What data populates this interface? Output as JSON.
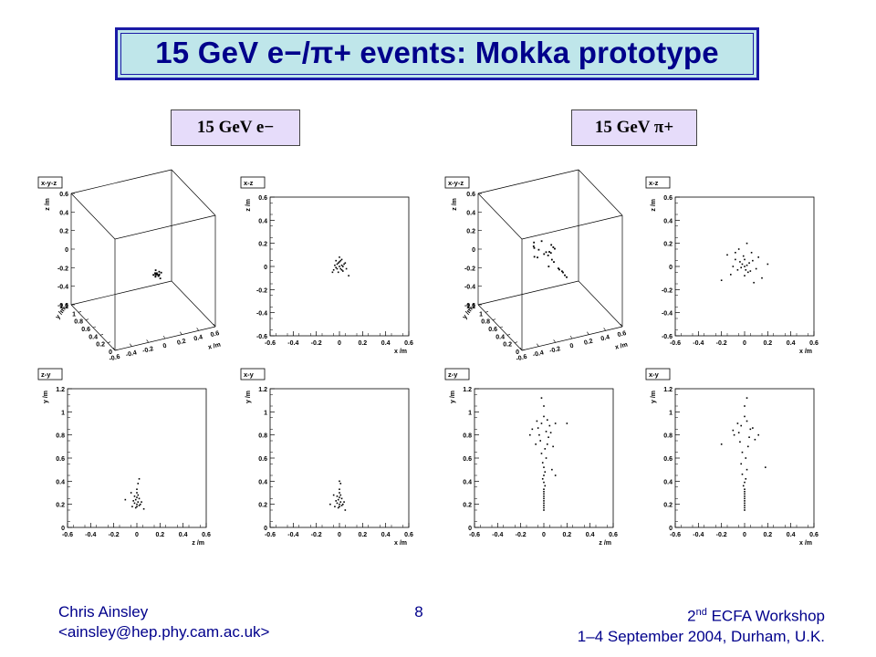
{
  "slide": {
    "title": "15 GeV e−/π+ events: Mokka prototype",
    "label_left": "15 GeV e−",
    "label_right": "15 GeV π+",
    "footer": {
      "author": "Chris Ainsley",
      "email": "<ainsley@hep.phy.cam.ac.uk>",
      "page": "8",
      "workshop_num": "2",
      "workshop_sup": "nd",
      "workshop_rest": " ECFA Workshop",
      "dates": "1–4 September 2004, Durham, U.K."
    }
  },
  "chart_data": [
    {
      "type": "scatter",
      "event": "15 GeV e−",
      "view": "x-y-z",
      "title": "x-y-z",
      "xlabel": "x /m",
      "ylabel": "y /m",
      "zlabel": "z /m",
      "xlim": [
        -0.6,
        0.6
      ],
      "ylim": [
        0,
        1.2
      ],
      "zlim": [
        -0.6,
        0.6
      ],
      "xticks": [
        "-0.6",
        "-0.4",
        "-0.2",
        "0",
        "0.2",
        "0.4",
        "0.6"
      ],
      "yticks": [
        "0",
        "0.2",
        "0.4",
        "0.6",
        "0.8",
        "1",
        "1.2"
      ],
      "zticks": [
        "-0.6",
        "-0.4",
        "-0.2",
        "0",
        "0.2",
        "0.4",
        "0.6"
      ],
      "points": [
        [
          -0.02,
          0.2,
          0.02
        ],
        [
          0.0,
          0.22,
          0.0
        ],
        [
          0.02,
          0.21,
          0.03
        ],
        [
          -0.01,
          0.24,
          -0.02
        ],
        [
          0.01,
          0.19,
          0.01
        ],
        [
          0.03,
          0.23,
          -0.01
        ],
        [
          -0.03,
          0.2,
          0.02
        ],
        [
          0.0,
          0.26,
          0.03
        ],
        [
          0.02,
          0.18,
          -0.03
        ],
        [
          -0.02,
          0.22,
          -0.02
        ],
        [
          0.01,
          0.25,
          0.0
        ],
        [
          0.04,
          0.2,
          0.02
        ],
        [
          -0.04,
          0.23,
          0.0
        ],
        [
          0.0,
          0.17,
          0.01
        ],
        [
          0.05,
          0.3,
          -0.06
        ],
        [
          -0.05,
          0.16,
          0.05
        ]
      ]
    },
    {
      "type": "scatter",
      "event": "15 GeV e−",
      "view": "x-z",
      "title": "x-z",
      "xlabel": "x /m",
      "ylabel": "z /m",
      "xlim": [
        -0.6,
        0.6
      ],
      "ylim": [
        -0.6,
        0.6
      ],
      "xticks": [
        "-0.6",
        "-0.4",
        "-0.2",
        "0",
        "0.2",
        "0.4",
        "0.6"
      ],
      "yticks": [
        "-0.6",
        "-0.4",
        "-0.2",
        "0",
        "0.2",
        "0.4",
        "0.6"
      ],
      "points": [
        [
          0.0,
          0.0
        ],
        [
          -0.02,
          0.02
        ],
        [
          0.02,
          0.01
        ],
        [
          0.01,
          -0.02
        ],
        [
          -0.01,
          0.03
        ],
        [
          0.03,
          0.0
        ],
        [
          -0.03,
          -0.01
        ],
        [
          0.0,
          0.04
        ],
        [
          0.02,
          -0.03
        ],
        [
          -0.02,
          -0.02
        ],
        [
          0.04,
          0.02
        ],
        [
          -0.04,
          0.01
        ],
        [
          0.01,
          0.05
        ],
        [
          0.03,
          -0.04
        ],
        [
          -0.01,
          -0.05
        ],
        [
          0.05,
          0.03
        ],
        [
          -0.05,
          -0.03
        ],
        [
          0.0,
          0.08
        ],
        [
          -0.06,
          -0.05
        ],
        [
          0.06,
          -0.02
        ],
        [
          0.02,
          0.06
        ],
        [
          -0.03,
          0.05
        ],
        [
          0.08,
          -0.08
        ]
      ]
    },
    {
      "type": "scatter",
      "event": "15 GeV π+",
      "view": "x-y-z",
      "title": "x-y-z",
      "xlabel": "x /m",
      "ylabel": "y /m",
      "zlabel": "z /m",
      "xlim": [
        -0.6,
        0.6
      ],
      "ylim": [
        0,
        1.2
      ],
      "zlim": [
        -0.6,
        0.6
      ],
      "xticks": [
        "-0.6",
        "-0.4",
        "-0.2",
        "0",
        "0.2",
        "0.4",
        "0.6"
      ],
      "yticks": [
        "0",
        "0.2",
        "0.4",
        "0.6",
        "0.8",
        "1",
        "1.2"
      ],
      "zticks": [
        "-0.6",
        "-0.4",
        "-0.2",
        "0",
        "0.2",
        "0.4",
        "0.6"
      ],
      "points": [
        [
          0.0,
          0.15,
          0.0
        ],
        [
          0.0,
          0.2,
          0.0
        ],
        [
          0.0,
          0.25,
          0.01
        ],
        [
          0.01,
          0.3,
          0.0
        ],
        [
          0.0,
          0.35,
          0.0
        ],
        [
          0.01,
          0.4,
          -0.01
        ],
        [
          0.0,
          0.5,
          0.02
        ],
        [
          0.02,
          0.6,
          0.0
        ],
        [
          -0.03,
          0.7,
          0.03
        ],
        [
          0.04,
          0.75,
          -0.02
        ],
        [
          -0.05,
          0.8,
          0.04
        ],
        [
          0.06,
          0.85,
          -0.03
        ],
        [
          -0.06,
          0.9,
          0.02
        ],
        [
          0.05,
          0.95,
          0.05
        ],
        [
          -0.08,
          0.85,
          -0.05
        ],
        [
          0.1,
          0.8,
          0.06
        ],
        [
          -0.1,
          0.72,
          0.0
        ],
        [
          0.12,
          0.9,
          -0.06
        ],
        [
          -0.02,
          1.0,
          0.03
        ],
        [
          0.03,
          0.65,
          0.05
        ],
        [
          -0.04,
          0.55,
          -0.04
        ],
        [
          0.08,
          0.7,
          0.08
        ],
        [
          -0.12,
          0.78,
          0.1
        ],
        [
          0.15,
          0.82,
          0.0
        ]
      ]
    },
    {
      "type": "scatter",
      "event": "15 GeV π+",
      "view": "x-z",
      "title": "x-z",
      "xlabel": "x /m",
      "ylabel": "z /m",
      "xlim": [
        -0.6,
        0.6
      ],
      "ylim": [
        -0.6,
        0.6
      ],
      "xticks": [
        "-0.6",
        "-0.4",
        "-0.2",
        "0",
        "0.2",
        "0.4",
        "0.6"
      ],
      "yticks": [
        "-0.6",
        "-0.4",
        "-0.2",
        "0",
        "0.2",
        "0.4",
        "0.6"
      ],
      "points": [
        [
          0.0,
          0.0
        ],
        [
          0.02,
          0.01
        ],
        [
          -0.02,
          0.02
        ],
        [
          0.01,
          -0.03
        ],
        [
          -0.03,
          -0.01
        ],
        [
          0.04,
          0.03
        ],
        [
          -0.04,
          0.04
        ],
        [
          0.0,
          0.06
        ],
        [
          0.05,
          -0.04
        ],
        [
          -0.06,
          -0.03
        ],
        [
          0.07,
          0.05
        ],
        [
          -0.08,
          0.06
        ],
        [
          0.1,
          -0.02
        ],
        [
          -0.1,
          0.0
        ],
        [
          0.0,
          -0.08
        ],
        [
          0.12,
          0.08
        ],
        [
          -0.12,
          -0.07
        ],
        [
          0.02,
          0.2
        ],
        [
          -0.05,
          0.15
        ],
        [
          0.15,
          -0.1
        ],
        [
          -0.2,
          -0.12
        ],
        [
          0.2,
          0.02
        ],
        [
          -0.15,
          0.1
        ],
        [
          0.08,
          -0.14
        ],
        [
          -0.08,
          0.12
        ],
        [
          0.03,
          -0.05
        ],
        [
          -0.01,
          0.09
        ],
        [
          0.06,
          0.12
        ]
      ]
    },
    {
      "type": "scatter",
      "event": "15 GeV e−",
      "view": "z-y",
      "title": "z-y",
      "xlabel": "z /m",
      "ylabel": "y /m",
      "xlim": [
        -0.6,
        0.6
      ],
      "ylim": [
        0,
        1.2
      ],
      "xticks": [
        "-0.6",
        "-0.4",
        "-0.2",
        "0",
        "0.2",
        "0.4",
        "0.6"
      ],
      "yticks": [
        "0",
        "0.2",
        "0.4",
        "0.6",
        "0.8",
        "1",
        "1.2"
      ],
      "points": [
        [
          0.0,
          0.18
        ],
        [
          0.0,
          0.2
        ],
        [
          0.01,
          0.22
        ],
        [
          -0.01,
          0.24
        ],
        [
          0.02,
          0.19
        ],
        [
          -0.02,
          0.21
        ],
        [
          0.0,
          0.26
        ],
        [
          0.01,
          0.28
        ],
        [
          -0.01,
          0.17
        ],
        [
          0.02,
          0.25
        ],
        [
          -0.03,
          0.23
        ],
        [
          0.03,
          0.2
        ],
        [
          0.0,
          0.3
        ],
        [
          -0.02,
          0.27
        ],
        [
          0.04,
          0.22
        ],
        [
          -0.04,
          0.18
        ],
        [
          0.0,
          0.33
        ],
        [
          0.01,
          0.38
        ],
        [
          -0.1,
          0.24
        ],
        [
          0.06,
          0.16
        ],
        [
          0.02,
          0.42
        ],
        [
          -0.05,
          0.3
        ]
      ]
    },
    {
      "type": "scatter",
      "event": "15 GeV e−",
      "view": "x-y",
      "title": "x-y",
      "xlabel": "x /m",
      "ylabel": "y /m",
      "xlim": [
        -0.6,
        0.6
      ],
      "ylim": [
        0,
        1.2
      ],
      "xticks": [
        "-0.6",
        "-0.4",
        "-0.2",
        "0",
        "0.2",
        "0.4",
        "0.6"
      ],
      "yticks": [
        "0",
        "0.2",
        "0.4",
        "0.6",
        "0.8",
        "1",
        "1.2"
      ],
      "points": [
        [
          0.0,
          0.18
        ],
        [
          0.0,
          0.2
        ],
        [
          0.01,
          0.22
        ],
        [
          -0.01,
          0.24
        ],
        [
          0.02,
          0.19
        ],
        [
          -0.02,
          0.21
        ],
        [
          0.0,
          0.26
        ],
        [
          0.01,
          0.28
        ],
        [
          -0.01,
          0.17
        ],
        [
          0.02,
          0.25
        ],
        [
          -0.03,
          0.23
        ],
        [
          0.03,
          0.2
        ],
        [
          0.0,
          0.3
        ],
        [
          -0.02,
          0.27
        ],
        [
          0.04,
          0.22
        ],
        [
          -0.04,
          0.18
        ],
        [
          0.0,
          0.33
        ],
        [
          0.01,
          0.38
        ],
        [
          -0.08,
          0.2
        ],
        [
          0.05,
          0.15
        ],
        [
          0.0,
          0.4
        ],
        [
          -0.05,
          0.28
        ]
      ]
    },
    {
      "type": "scatter",
      "event": "15 GeV π+",
      "view": "z-y",
      "title": "z-y",
      "xlabel": "z /m",
      "ylabel": "y /m",
      "xlim": [
        -0.6,
        0.6
      ],
      "ylim": [
        0,
        1.2
      ],
      "xticks": [
        "-0.6",
        "-0.4",
        "-0.2",
        "0",
        "0.2",
        "0.4",
        "0.6"
      ],
      "yticks": [
        "0",
        "0.2",
        "0.4",
        "0.6",
        "0.8",
        "1",
        "1.2"
      ],
      "points": [
        [
          0.0,
          0.15
        ],
        [
          0.0,
          0.17
        ],
        [
          0.0,
          0.19
        ],
        [
          0.0,
          0.21
        ],
        [
          0.0,
          0.23
        ],
        [
          0.0,
          0.25
        ],
        [
          0.0,
          0.27
        ],
        [
          0.0,
          0.29
        ],
        [
          0.0,
          0.31
        ],
        [
          0.0,
          0.33
        ],
        [
          0.01,
          0.36
        ],
        [
          0.0,
          0.39
        ],
        [
          -0.01,
          0.42
        ],
        [
          0.0,
          0.45
        ],
        [
          0.01,
          0.48
        ],
        [
          0.0,
          0.52
        ],
        [
          -0.01,
          0.56
        ],
        [
          0.02,
          0.6
        ],
        [
          -0.02,
          0.64
        ],
        [
          0.01,
          0.68
        ],
        [
          0.03,
          0.72
        ],
        [
          -0.03,
          0.75
        ],
        [
          0.04,
          0.78
        ],
        [
          -0.04,
          0.8
        ],
        [
          0.02,
          0.83
        ],
        [
          -0.05,
          0.86
        ],
        [
          0.05,
          0.88
        ],
        [
          -0.02,
          0.9
        ],
        [
          0.03,
          0.93
        ],
        [
          0.0,
          0.96
        ],
        [
          -0.06,
          0.92
        ],
        [
          0.06,
          0.82
        ],
        [
          -0.1,
          0.85
        ],
        [
          0.1,
          0.9
        ],
        [
          0.0,
          1.05
        ],
        [
          -0.02,
          1.12
        ],
        [
          0.2,
          0.9
        ],
        [
          0.07,
          0.5
        ],
        [
          0.1,
          0.45
        ],
        [
          -0.12,
          0.8
        ],
        [
          0.08,
          0.7
        ],
        [
          -0.07,
          0.72
        ]
      ]
    },
    {
      "type": "scatter",
      "event": "15 GeV π+",
      "view": "x-y",
      "title": "x-y",
      "xlabel": "x /m",
      "ylabel": "y /m",
      "xlim": [
        -0.6,
        0.6
      ],
      "ylim": [
        0,
        1.2
      ],
      "xticks": [
        "-0.6",
        "-0.4",
        "-0.2",
        "0",
        "0.2",
        "0.4",
        "0.6"
      ],
      "yticks": [
        "0",
        "0.2",
        "0.4",
        "0.6",
        "0.8",
        "1",
        "1.2"
      ],
      "points": [
        [
          0.0,
          0.15
        ],
        [
          0.0,
          0.17
        ],
        [
          0.0,
          0.19
        ],
        [
          0.0,
          0.21
        ],
        [
          0.0,
          0.23
        ],
        [
          0.0,
          0.25
        ],
        [
          0.0,
          0.27
        ],
        [
          0.0,
          0.29
        ],
        [
          0.0,
          0.31
        ],
        [
          0.0,
          0.33
        ],
        [
          -0.01,
          0.36
        ],
        [
          0.0,
          0.39
        ],
        [
          0.01,
          0.42
        ],
        [
          -0.02,
          0.46
        ],
        [
          0.02,
          0.5
        ],
        [
          -0.03,
          0.55
        ],
        [
          0.01,
          0.6
        ],
        [
          -0.02,
          0.65
        ],
        [
          0.03,
          0.7
        ],
        [
          -0.04,
          0.74
        ],
        [
          0.04,
          0.78
        ],
        [
          -0.05,
          0.82
        ],
        [
          0.05,
          0.85
        ],
        [
          -0.03,
          0.88
        ],
        [
          0.02,
          0.92
        ],
        [
          0.0,
          0.96
        ],
        [
          -0.06,
          0.9
        ],
        [
          0.07,
          0.86
        ],
        [
          -0.09,
          0.8
        ],
        [
          0.09,
          0.76
        ],
        [
          0.0,
          1.05
        ],
        [
          0.02,
          1.12
        ],
        [
          -0.2,
          0.72
        ],
        [
          0.18,
          0.52
        ],
        [
          0.12,
          0.8
        ],
        [
          -0.1,
          0.84
        ]
      ]
    }
  ]
}
